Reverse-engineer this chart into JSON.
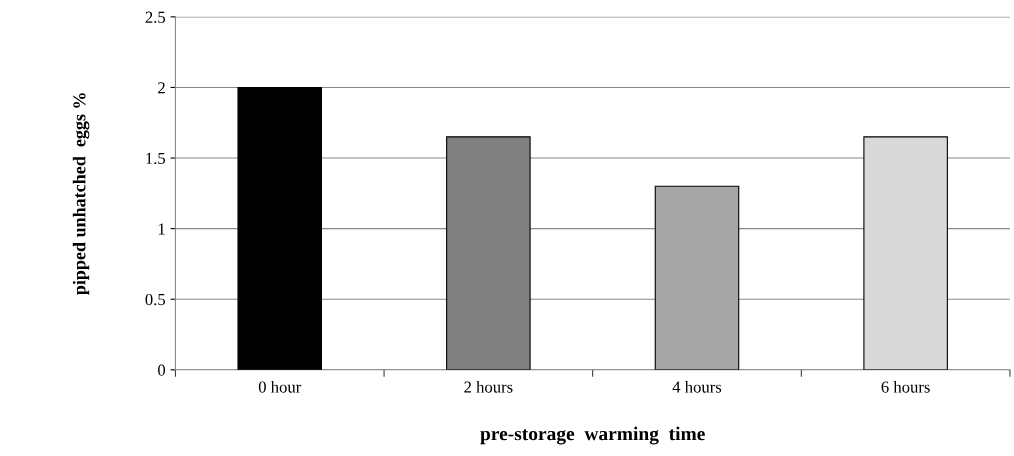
{
  "chart_data": {
    "type": "bar",
    "xlabel": "pre-storage  warming  time",
    "ylabel": "pipped unhatched  eggs %",
    "categories": [
      "0 hour",
      "2 hours",
      "4 hours",
      "6 hours"
    ],
    "values": [
      2,
      1.65,
      1.3,
      1.65
    ],
    "colors": [
      "#000000",
      "#808080",
      "#a6a6a6",
      "#d9d9d9"
    ],
    "ylim": [
      0,
      2.5
    ],
    "yticks": [
      0,
      0.5,
      1,
      1.5,
      2,
      2.5
    ],
    "grid": "y",
    "legend": false
  }
}
